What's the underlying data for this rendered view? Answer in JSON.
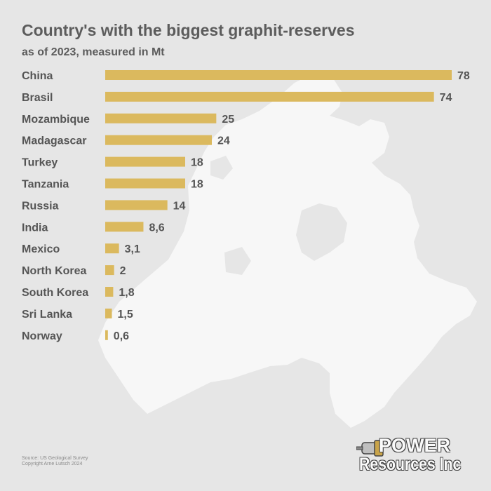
{
  "chart_data": {
    "type": "bar",
    "orientation": "horizontal",
    "title": "Country's with the biggest graphit-reserves",
    "subtitle": "as of 2023, measured in Mt",
    "categories": [
      "China",
      "Brasil",
      "Mozambique",
      "Madagascar",
      "Turkey",
      "Tanzania",
      "Russia",
      "India",
      "Mexico",
      "North Korea",
      "South Korea",
      "Sri Lanka",
      "Norway"
    ],
    "values": [
      78,
      74,
      25,
      24,
      18,
      18,
      14,
      8.6,
      3.1,
      2,
      1.8,
      1.5,
      0.6
    ],
    "value_labels": [
      "78",
      "74",
      "25",
      "24",
      "18",
      "18",
      "14",
      "8,6",
      "3,1",
      "2",
      "1,8",
      "1,5",
      "0,6"
    ],
    "xlim": [
      0,
      78
    ],
    "bar_color": "#dbb95e",
    "grid": false
  },
  "footer": {
    "source": "Source: US Geological Survey",
    "copyright": "Copyright Arne Lutsch 2024"
  },
  "logo": {
    "line1": "POWER",
    "line2": "Resources Inc"
  },
  "colors": {
    "background": "#e6e6e6",
    "map": "#f7f7f7",
    "text": "#555555"
  }
}
